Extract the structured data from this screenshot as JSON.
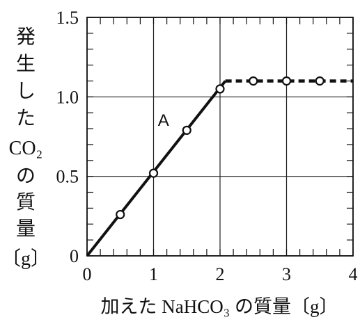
{
  "chart_data": {
    "type": "line",
    "xlabel": "加えた NaHCO₃ の質量〔g〕",
    "ylabel": [
      "発",
      "生",
      "し",
      "た",
      "CO₂",
      "の",
      "質",
      "量",
      "〔g〕"
    ],
    "xlim": [
      0,
      4
    ],
    "ylim": [
      0,
      1.5
    ],
    "x_ticks": [
      "0",
      "1",
      "2",
      "3",
      "4"
    ],
    "y_ticks": [
      "0",
      "0.5",
      "1.0",
      "1.5"
    ],
    "grid": true,
    "annotations": [
      {
        "text": "A",
        "x": 1.38,
        "y": 0.84
      }
    ],
    "series": [
      {
        "style": "solid-line",
        "x": [
          0,
          2.08
        ],
        "y": [
          0,
          1.1
        ]
      },
      {
        "style": "dashed-line",
        "x": [
          2.08,
          4
        ],
        "y": [
          1.1,
          1.1
        ]
      },
      {
        "style": "open-circle",
        "x": [
          0.5,
          1.0,
          1.5,
          2.0,
          2.5,
          3.0,
          3.5
        ],
        "y": [
          0.26,
          0.52,
          0.79,
          1.05,
          1.1,
          1.1,
          1.1
        ]
      }
    ]
  }
}
